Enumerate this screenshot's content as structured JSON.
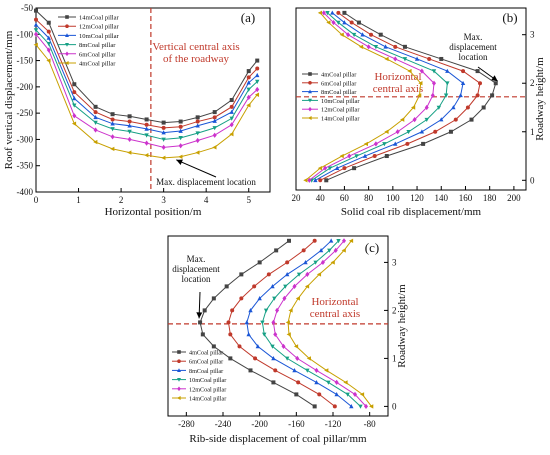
{
  "chart_data": [
    {
      "panel": "(a)",
      "type": "line",
      "xlabel": "Horizontal position/m",
      "ylabel": "Roof vertical displacement/mm",
      "xlim": [
        0,
        5.5
      ],
      "ylim": [
        -400,
        -50
      ],
      "xticks": [
        0,
        1,
        2,
        3,
        4,
        5
      ],
      "yticks": [
        -50,
        -100,
        -150,
        -200,
        -250,
        -300,
        -350,
        -400
      ],
      "legend_position": "top-left",
      "annotations": {
        "axis_label": "Vertical central axis\nof the roadway",
        "max_label": "Max. displacement location",
        "axis_x": 2.7,
        "max_point": [
          3.25,
          -335
        ]
      },
      "x": [
        0,
        0.3,
        0.9,
        1.4,
        1.8,
        2.2,
        2.6,
        3.0,
        3.4,
        3.8,
        4.2,
        4.6,
        5.0,
        5.2
      ],
      "series": [
        {
          "name": "14mCoal pillar",
          "values": [
            -55,
            -78,
            -195,
            -238,
            -252,
            -256,
            -262,
            -268,
            -266,
            -258,
            -248,
            -225,
            -170,
            -150
          ],
          "color": "#444444",
          "marker": "square"
        },
        {
          "name": "12mCoal pillar",
          "values": [
            -72,
            -95,
            -210,
            -248,
            -262,
            -266,
            -272,
            -278,
            -276,
            -266,
            -258,
            -238,
            -182,
            -165
          ],
          "color": "#c0392b",
          "marker": "circle"
        },
        {
          "name": "10mCoal pillar",
          "values": [
            -82,
            -107,
            -222,
            -258,
            -270,
            -274,
            -280,
            -287,
            -284,
            -274,
            -265,
            -248,
            -192,
            -178
          ],
          "color": "#1a56d6",
          "marker": "triangle"
        },
        {
          "name": "8mCoal pillar",
          "values": [
            -92,
            -118,
            -235,
            -268,
            -280,
            -285,
            -292,
            -300,
            -297,
            -288,
            -278,
            -260,
            -205,
            -190
          ],
          "color": "#16a085",
          "marker": "down-triangle"
        },
        {
          "name": "6mCoal pillar",
          "values": [
            -100,
            -130,
            -255,
            -282,
            -295,
            -300,
            -307,
            -315,
            -312,
            -302,
            -292,
            -272,
            -220,
            -205
          ],
          "color": "#cc33cc",
          "marker": "diamond"
        },
        {
          "name": "4mCoal pillar",
          "values": [
            -120,
            -150,
            -270,
            -305,
            -318,
            -325,
            -330,
            -335,
            -333,
            -325,
            -315,
            -290,
            -235,
            -215
          ],
          "color": "#c8a000",
          "marker": "left-triangle"
        }
      ]
    },
    {
      "panel": "(b)",
      "type": "line",
      "xlabel": "Solid coal rib displacement/mm",
      "ylabel": "Roadway height/m",
      "xlim": [
        20,
        210
      ],
      "ylim": [
        -0.2,
        3.55
      ],
      "xticks": [
        20,
        40,
        60,
        80,
        100,
        120,
        140,
        160,
        180,
        200
      ],
      "yticks": [
        0,
        1,
        2,
        3
      ],
      "legend_position": "center-left",
      "annotations": {
        "axis_label": "Horizontal\ncentral axis",
        "max_label": "Max.\ndisplacement\nlocation",
        "axis_y": 1.72,
        "max_point": [
          185,
          2.0
        ]
      },
      "y": [
        0,
        0.25,
        0.5,
        0.75,
        1.0,
        1.25,
        1.5,
        1.75,
        2.0,
        2.25,
        2.5,
        2.75,
        3.0,
        3.25,
        3.45
      ],
      "series": [
        {
          "name": "4mCoal pillar",
          "values": [
            45,
            68,
            95,
            125,
            148,
            165,
            175,
            182,
            185,
            170,
            140,
            110,
            90,
            72,
            60
          ],
          "color": "#444444",
          "marker": "square"
        },
        {
          "name": "6mCoal pillar",
          "values": [
            40,
            60,
            85,
            112,
            135,
            152,
            162,
            170,
            172,
            158,
            130,
            102,
            82,
            66,
            55
          ],
          "color": "#c0392b",
          "marker": "circle"
        },
        {
          "name": "8mCoal pillar",
          "values": [
            36,
            54,
            77,
            102,
            124,
            140,
            150,
            156,
            158,
            145,
            120,
            94,
            75,
            60,
            50
          ],
          "color": "#1a56d6",
          "marker": "triangle"
        },
        {
          "name": "10mCoal pillar",
          "values": [
            33,
            48,
            70,
            93,
            113,
            128,
            138,
            144,
            145,
            134,
            110,
            86,
            68,
            55,
            46
          ],
          "color": "#16a085",
          "marker": "down-triangle"
        },
        {
          "name": "12mCoal pillar",
          "values": [
            31,
            44,
            64,
            86,
            104,
            118,
            128,
            133,
            134,
            124,
            102,
            80,
            63,
            51,
            43
          ],
          "color": "#cc33cc",
          "marker": "diamond"
        },
        {
          "name": "14mCoal pillar",
          "values": [
            28,
            40,
            58,
            78,
            95,
            108,
            117,
            122,
            123,
            114,
            95,
            74,
            58,
            47,
            40
          ],
          "color": "#c8a000",
          "marker": "left-triangle"
        }
      ]
    },
    {
      "panel": "(c)",
      "type": "line",
      "xlabel": "Rib-side displacement of coal pillar/mm",
      "ylabel": "Roadway height/m",
      "xlim": [
        -300,
        -60
      ],
      "ylim": [
        -0.2,
        3.55
      ],
      "xticks": [
        -280,
        -240,
        -200,
        -160,
        -120,
        -80
      ],
      "yticks": [
        0,
        1,
        2,
        3
      ],
      "legend_position": "bottom-left",
      "annotations": {
        "axis_label": "Horizontal\ncentral axis",
        "max_label": "Max.\ndisplacement\nlocation",
        "axis_y": 1.72,
        "max_point": [
          -265,
          1.75
        ]
      },
      "y": [
        0,
        0.25,
        0.5,
        0.75,
        1.0,
        1.25,
        1.5,
        1.75,
        2.0,
        2.25,
        2.5,
        2.75,
        3.0,
        3.25,
        3.45
      ],
      "series": [
        {
          "name": "4mCoal pillar",
          "values": [
            -140,
            -160,
            -185,
            -210,
            -232,
            -250,
            -262,
            -265,
            -260,
            -250,
            -236,
            -220,
            -200,
            -182,
            -168
          ],
          "color": "#444444",
          "marker": "square"
        },
        {
          "name": "6mCoal pillar",
          "values": [
            -118,
            -135,
            -158,
            -183,
            -205,
            -222,
            -232,
            -234,
            -230,
            -220,
            -206,
            -190,
            -170,
            -152,
            -140
          ],
          "color": "#c0392b",
          "marker": "circle"
        },
        {
          "name": "8mCoal pillar",
          "values": [
            -100,
            -116,
            -138,
            -162,
            -185,
            -202,
            -212,
            -214,
            -210,
            -200,
            -186,
            -170,
            -150,
            -133,
            -122
          ],
          "color": "#1a56d6",
          "marker": "triangle"
        },
        {
          "name": "10mCoal pillar",
          "values": [
            -90,
            -104,
            -125,
            -148,
            -170,
            -186,
            -195,
            -197,
            -193,
            -184,
            -172,
            -157,
            -139,
            -124,
            -114
          ],
          "color": "#16a085",
          "marker": "down-triangle"
        },
        {
          "name": "12mCoal pillar",
          "values": [
            -84,
            -96,
            -116,
            -138,
            -159,
            -174,
            -183,
            -185,
            -181,
            -173,
            -162,
            -148,
            -131,
            -117,
            -108
          ],
          "color": "#cc33cc",
          "marker": "diamond"
        },
        {
          "name": "14mCoal pillar",
          "values": [
            -78,
            -88,
            -106,
            -127,
            -146,
            -160,
            -168,
            -169,
            -166,
            -158,
            -148,
            -135,
            -120,
            -108,
            -100
          ],
          "color": "#c8a000",
          "marker": "left-triangle"
        }
      ]
    }
  ]
}
